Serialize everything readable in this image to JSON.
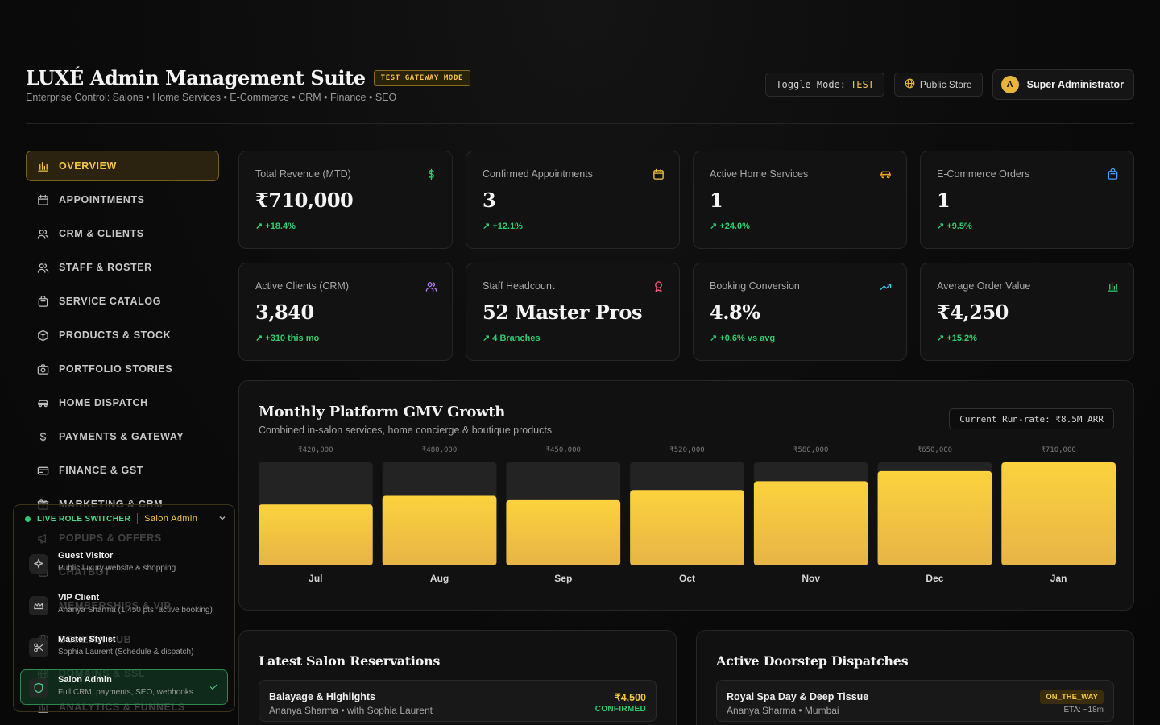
{
  "header": {
    "title": "LUXÉ Admin Management Suite",
    "mode_badge": "TEST GATEWAY MODE",
    "subtitle": "Enterprise Control: Salons • Home Services • E-Commerce • CRM • Finance • SEO",
    "toggle_label": "Toggle Mode:",
    "toggle_value": "TEST",
    "public_store": "Public Store",
    "user_initial": "A",
    "user_role": "Super Administrator"
  },
  "sidebar": {
    "items": [
      {
        "label": "OVERVIEW",
        "icon": "bar-chart-icon",
        "active": true
      },
      {
        "label": "APPOINTMENTS",
        "icon": "calendar-icon"
      },
      {
        "label": "CRM & CLIENTS",
        "icon": "users-icon"
      },
      {
        "label": "STAFF & ROSTER",
        "icon": "users-icon"
      },
      {
        "label": "SERVICE CATALOG",
        "icon": "bag-icon"
      },
      {
        "label": "PRODUCTS & STOCK",
        "icon": "box-icon"
      },
      {
        "label": "PORTFOLIO STORIES",
        "icon": "camera-icon"
      },
      {
        "label": "HOME DISPATCH",
        "icon": "car-icon"
      },
      {
        "label": "PAYMENTS & GATEWAY",
        "icon": "dollar-icon"
      },
      {
        "label": "FINANCE & GST",
        "icon": "card-icon"
      },
      {
        "label": "MARKETING & CRM",
        "icon": "gift-icon"
      },
      {
        "label": "POPUPS & OFFERS",
        "icon": "megaphone-icon"
      },
      {
        "label": "CHATBOT",
        "icon": "bot-icon"
      },
      {
        "label": "MEMBERSHIPS & VIP",
        "icon": "crown-icon"
      },
      {
        "label": "SCHEMA HUB",
        "icon": "globe-icon"
      },
      {
        "label": "DOMAINS & SSL",
        "icon": "globe-icon"
      },
      {
        "label": "ANALYTICS & FUNNELS",
        "icon": "bar-chart-icon"
      }
    ]
  },
  "role_switcher": {
    "label": "LIVE ROLE SWITCHER",
    "current": "Salon Admin",
    "options": [
      {
        "name": "Guest Visitor",
        "desc": "Public luxury website & shopping"
      },
      {
        "name": "VIP Client",
        "desc": "Ananya Sharma (1,450 pts, active booking)"
      },
      {
        "name": "Master Stylist",
        "desc": "Sophia Laurent (Schedule & dispatch)"
      },
      {
        "name": "Salon Admin",
        "desc": "Full CRM, payments, SEO, webhooks",
        "selected": true
      }
    ]
  },
  "kpis": [
    {
      "label": "Total Revenue (MTD)",
      "value": "₹710,000",
      "delta": "↗ +18.4%",
      "icon": "dollar-icon",
      "color": "#2ecc71"
    },
    {
      "label": "Confirmed Appointments",
      "value": "3",
      "delta": "↗ +12.1%",
      "icon": "calendar-icon",
      "color": "#f5c542"
    },
    {
      "label": "Active Home Services",
      "value": "1",
      "delta": "↗ +24.0%",
      "icon": "car-icon",
      "color": "#f5a623"
    },
    {
      "label": "E-Commerce Orders",
      "value": "1",
      "delta": "↗ +9.5%",
      "icon": "bag-icon",
      "color": "#4a9eff"
    },
    {
      "label": "Active Clients (CRM)",
      "value": "3,840",
      "delta": "↗ +310 this mo",
      "icon": "users-icon",
      "color": "#b07cff"
    },
    {
      "label": "Staff Headcount",
      "value": "52 Master Pros",
      "delta": "↗ 4 Branches",
      "icon": "award-icon",
      "color": "#ff5a7a"
    },
    {
      "label": "Booking Conversion",
      "value": "4.8%",
      "delta": "↗ +0.6% vs avg",
      "icon": "trending-up-icon",
      "color": "#3fc6e8"
    },
    {
      "label": "Average Order Value",
      "value": "₹4,250",
      "delta": "↗ +15.2%",
      "icon": "bar-chart-icon",
      "color": "#2ecc71"
    }
  ],
  "chart_card": {
    "title": "Monthly Platform GMV Growth",
    "subtitle": "Combined in-salon services, home concierge & boutique products",
    "runrate": "Current Run-rate: ₹8.5M ARR"
  },
  "chart_data": {
    "type": "bar",
    "categories": [
      "Jul",
      "Aug",
      "Sep",
      "Oct",
      "Nov",
      "Dec",
      "Jan"
    ],
    "values": [
      420000,
      480000,
      450000,
      520000,
      580000,
      650000,
      710000
    ],
    "value_labels": [
      "₹420,000",
      "₹480,000",
      "₹450,000",
      "₹520,000",
      "₹580,000",
      "₹650,000",
      "₹710,000"
    ],
    "ylim": [
      0,
      710000
    ],
    "grid": false,
    "colors": {
      "bar_top": "#fcd23d",
      "bar_bottom": "#e7b447",
      "track": "#232323"
    }
  },
  "reservations": {
    "title": "Latest Salon Reservations",
    "rows": [
      {
        "service": "Balayage & Highlights",
        "client": "Ananya Sharma • with Sophia Laurent",
        "amount": "₹4,500",
        "status": "CONFIRMED"
      }
    ]
  },
  "dispatches": {
    "title": "Active Doorstep Dispatches",
    "rows": [
      {
        "service": "Royal Spa Day & Deep Tissue",
        "client": "Ananya Sharma • Mumbai",
        "status": "ON_THE_WAY",
        "eta": "ETA: ~18m"
      }
    ]
  }
}
